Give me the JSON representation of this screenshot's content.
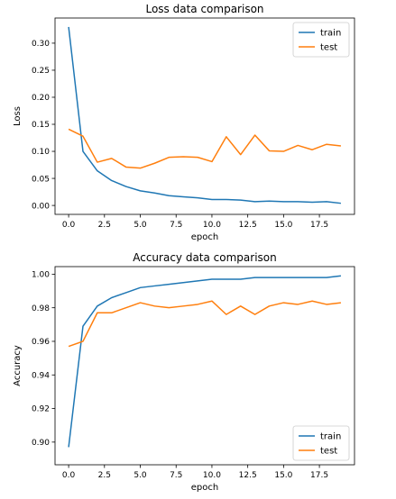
{
  "charts": [
    {
      "type": "line",
      "title": "Loss data comparison",
      "xlabel": "epoch",
      "ylabel": "Loss",
      "xlim": [
        -0.95,
        19.95
      ],
      "ylim": [
        -0.0165,
        0.3465
      ],
      "xticks": [
        0.0,
        2.5,
        5.0,
        7.5,
        10.0,
        12.5,
        15.0,
        17.5
      ],
      "xtick_labels": [
        "0.0",
        "2.5",
        "5.0",
        "7.5",
        "10.0",
        "12.5",
        "15.0",
        "17.5"
      ],
      "yticks": [
        0.0,
        0.05,
        0.1,
        0.15,
        0.2,
        0.25,
        0.3
      ],
      "ytick_labels": [
        "0.00",
        "0.05",
        "0.10",
        "0.15",
        "0.20",
        "0.25",
        "0.30"
      ],
      "legend_position": "upper right",
      "grid": false,
      "x": [
        0,
        1,
        2,
        3,
        4,
        5,
        6,
        7,
        8,
        9,
        10,
        11,
        12,
        13,
        14,
        15,
        16,
        17,
        18,
        19
      ],
      "series": [
        {
          "name": "train",
          "color": "#1f77b4",
          "values": [
            0.33,
            0.1,
            0.064,
            0.046,
            0.035,
            0.027,
            0.023,
            0.018,
            0.016,
            0.014,
            0.011,
            0.011,
            0.01,
            0.007,
            0.008,
            0.007,
            0.007,
            0.006,
            0.007,
            0.004
          ]
        },
        {
          "name": "test",
          "color": "#ff7f0e",
          "values": [
            0.141,
            0.128,
            0.08,
            0.087,
            0.071,
            0.069,
            0.078,
            0.089,
            0.09,
            0.089,
            0.081,
            0.127,
            0.094,
            0.13,
            0.101,
            0.1,
            0.111,
            0.103,
            0.113,
            0.11
          ]
        }
      ]
    },
    {
      "type": "line",
      "title": "Accuracy data comparison",
      "xlabel": "epoch",
      "ylabel": "Accuracy",
      "xlim": [
        -0.95,
        19.95
      ],
      "ylim": [
        0.8865,
        1.0045
      ],
      "xticks": [
        0.0,
        2.5,
        5.0,
        7.5,
        10.0,
        12.5,
        15.0,
        17.5
      ],
      "xtick_labels": [
        "0.0",
        "2.5",
        "5.0",
        "7.5",
        "10.0",
        "12.5",
        "15.0",
        "17.5"
      ],
      "yticks": [
        0.9,
        0.92,
        0.94,
        0.96,
        0.98,
        1.0
      ],
      "ytick_labels": [
        "0.90",
        "0.92",
        "0.94",
        "0.96",
        "0.98",
        "1.00"
      ],
      "legend_position": "lower right",
      "grid": false,
      "x": [
        0,
        1,
        2,
        3,
        4,
        5,
        6,
        7,
        8,
        9,
        10,
        11,
        12,
        13,
        14,
        15,
        16,
        17,
        18,
        19
      ],
      "series": [
        {
          "name": "train",
          "color": "#1f77b4",
          "values": [
            0.897,
            0.969,
            0.981,
            0.986,
            0.989,
            0.992,
            0.993,
            0.994,
            0.995,
            0.996,
            0.997,
            0.997,
            0.997,
            0.998,
            0.998,
            0.998,
            0.998,
            0.998,
            0.998,
            0.999
          ]
        },
        {
          "name": "test",
          "color": "#ff7f0e",
          "values": [
            0.957,
            0.96,
            0.977,
            0.977,
            0.98,
            0.983,
            0.981,
            0.98,
            0.981,
            0.982,
            0.984,
            0.976,
            0.981,
            0.976,
            0.981,
            0.983,
            0.982,
            0.984,
            0.982,
            0.983
          ]
        }
      ]
    }
  ]
}
